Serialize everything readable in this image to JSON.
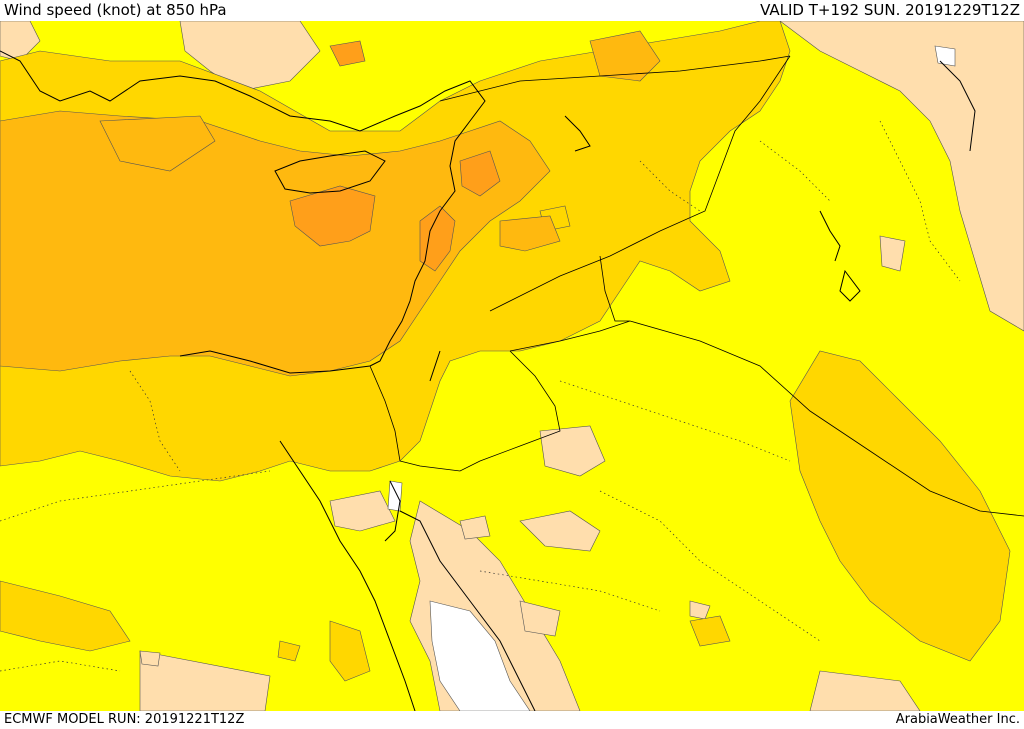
{
  "header": {
    "title": "Wind speed (knot) at 850 hPa",
    "valid_time": "VALID T+192 SUN. 20191229T12Z"
  },
  "footer": {
    "model_run": "ECMWF MODEL RUN: 20191221T12Z",
    "credit": "ArabiaWeather Inc."
  },
  "colors": {
    "band_low": "#ffffff",
    "band_1": "#ffdead",
    "band_2": "#ffff00",
    "band_3": "#ffd700",
    "band_4": "#ffb90f",
    "band_5": "#ff9f1a",
    "coastline": "#000000",
    "border": "#000000"
  }
}
